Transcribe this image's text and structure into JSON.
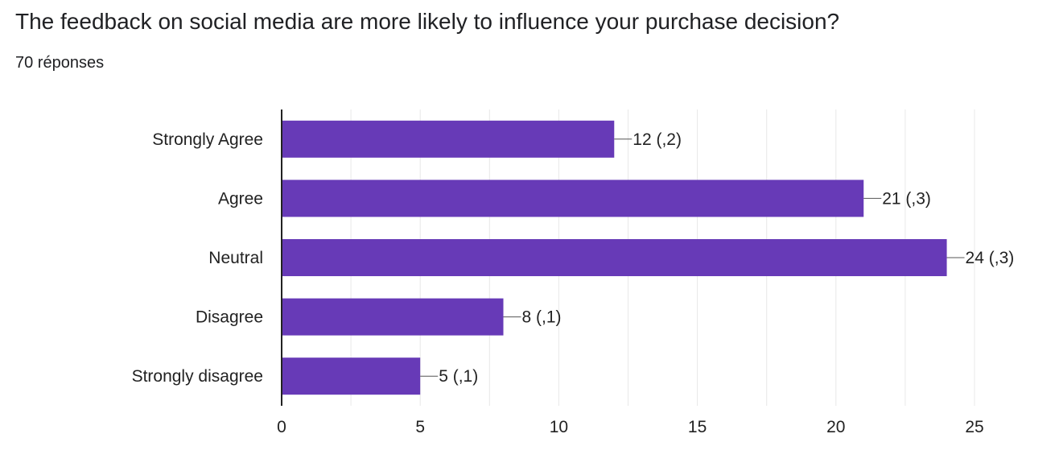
{
  "question": {
    "title": "The feedback on social media are more likely to influence your purchase decision?",
    "response_count": "70 réponses"
  },
  "colors": {
    "bar": "#673ab7",
    "grid": "#e8e8e8",
    "axis": "#222222"
  },
  "chart_data": {
    "type": "bar",
    "orientation": "horizontal",
    "title": "The feedback on social media are more likely to influence your purchase decision?",
    "xlabel": "",
    "ylabel": "",
    "xlim": [
      0,
      25
    ],
    "ticks": [
      0,
      5,
      10,
      15,
      20,
      25
    ],
    "grid": true,
    "categories": [
      "Strongly Agree",
      "Agree",
      "Neutral",
      "Disagree",
      "Strongly disagree"
    ],
    "values": [
      12,
      21,
      24,
      8,
      5
    ],
    "data_labels": [
      "12 (,2)",
      "21 (,3)",
      "24 (,3)",
      "8 (,1)",
      "5 (,1)"
    ]
  }
}
